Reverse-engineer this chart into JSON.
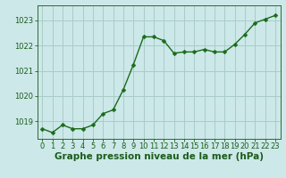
{
  "x": [
    0,
    1,
    2,
    3,
    4,
    5,
    6,
    7,
    8,
    9,
    10,
    11,
    12,
    13,
    14,
    15,
    16,
    17,
    18,
    19,
    20,
    21,
    22,
    23
  ],
  "y": [
    1018.7,
    1018.55,
    1018.85,
    1018.7,
    1018.7,
    1018.85,
    1019.3,
    1019.45,
    1020.25,
    1021.25,
    1022.35,
    1022.35,
    1022.2,
    1021.7,
    1021.75,
    1021.75,
    1021.85,
    1021.75,
    1021.75,
    1022.05,
    1022.45,
    1022.9,
    1023.05,
    1023.2
  ],
  "line_color": "#1a6b1a",
  "marker_color": "#1a6b1a",
  "bg_color": "#cce8e8",
  "grid_color": "#aacccc",
  "axis_color": "#336633",
  "label_color": "#1a5c1a",
  "xlabel": "Graphe pression niveau de la mer (hPa)",
  "ylim": [
    1018.3,
    1023.6
  ],
  "yticks": [
    1019,
    1020,
    1021,
    1022,
    1023
  ],
  "xticks": [
    0,
    1,
    2,
    3,
    4,
    5,
    6,
    7,
    8,
    9,
    10,
    11,
    12,
    13,
    14,
    15,
    16,
    17,
    18,
    19,
    20,
    21,
    22,
    23
  ],
  "line_width": 1.0,
  "marker_size": 2.5,
  "xlabel_fontsize": 7.5,
  "tick_fontsize": 6.0
}
